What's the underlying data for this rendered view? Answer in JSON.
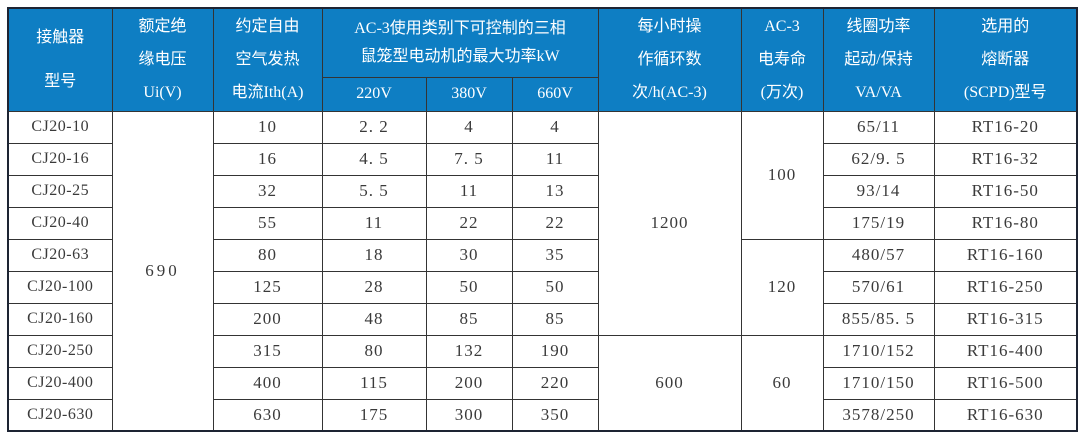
{
  "table": {
    "colors": {
      "header_bg": "#0e7ec3",
      "header_text": "#ffffff",
      "body_text": "#3a3a3a",
      "grid_line": "#343434",
      "outer_border": "#1d2433"
    },
    "header": {
      "model": [
        "接触器",
        "型号"
      ],
      "insulation_voltage": [
        "额定绝",
        "缘电压",
        "Ui(V)"
      ],
      "thermal_current": [
        "约定自由",
        "空气发热",
        "电流Ith(A)"
      ],
      "ac3_power": [
        "AC-3使用类别下可控制的三相",
        "鼠笼型电动机的最大功率kW"
      ],
      "voltages": [
        "220V",
        "380V",
        "660V"
      ],
      "cycles_per_hour": [
        "每小时操",
        "作循环数",
        "次/h(AC-3)"
      ],
      "electrical_life": [
        "AC-3",
        "电寿命",
        "(万次)"
      ],
      "coil_power": [
        "线圈功率",
        "起动/保持",
        "VA/VA"
      ],
      "fuse": [
        "选用的",
        "熔断器",
        "(SCPD)型号"
      ]
    },
    "rows": [
      {
        "model": "CJ20-10",
        "ith": "10",
        "kw_220v": "2. 2",
        "kw_380v": "4",
        "kw_660v": "4",
        "coil_va": "65/11",
        "fuse": "RT16-20"
      },
      {
        "model": "CJ20-16",
        "ith": "16",
        "kw_220v": "4. 5",
        "kw_380v": "7. 5",
        "kw_660v": "11",
        "coil_va": "62/9. 5",
        "fuse": "RT16-32"
      },
      {
        "model": "CJ20-25",
        "ith": "32",
        "kw_220v": "5. 5",
        "kw_380v": "11",
        "kw_660v": "13",
        "coil_va": "93/14",
        "fuse": "RT16-50"
      },
      {
        "model": "CJ20-40",
        "ith": "55",
        "kw_220v": "11",
        "kw_380v": "22",
        "kw_660v": "22",
        "coil_va": "175/19",
        "fuse": "RT16-80"
      },
      {
        "model": "CJ20-63",
        "ith": "80",
        "kw_220v": "18",
        "kw_380v": "30",
        "kw_660v": "35",
        "coil_va": "480/57",
        "fuse": "RT16-160"
      },
      {
        "model": "CJ20-100",
        "ith": "125",
        "kw_220v": "28",
        "kw_380v": "50",
        "kw_660v": "50",
        "coil_va": "570/61",
        "fuse": "RT16-250"
      },
      {
        "model": "CJ20-160",
        "ith": "200",
        "kw_220v": "48",
        "kw_380v": "85",
        "kw_660v": "85",
        "coil_va": "855/85. 5",
        "fuse": "RT16-315"
      },
      {
        "model": "CJ20-250",
        "ith": "315",
        "kw_220v": "80",
        "kw_380v": "132",
        "kw_660v": "190",
        "coil_va": "1710/152",
        "fuse": "RT16-400"
      },
      {
        "model": "CJ20-400",
        "ith": "400",
        "kw_220v": "115",
        "kw_380v": "200",
        "kw_660v": "220",
        "coil_va": "1710/150",
        "fuse": "RT16-500"
      },
      {
        "model": "CJ20-630",
        "ith": "630",
        "kw_220v": "175",
        "kw_380v": "300",
        "kw_660v": "350",
        "coil_va": "3578/250",
        "fuse": "RT16-630"
      }
    ],
    "merged": {
      "insulation_voltage": [
        {
          "value": "690",
          "start": 0,
          "span": 10
        }
      ],
      "cycles_per_hour": [
        {
          "value": "1200",
          "start": 0,
          "span": 7
        },
        {
          "value": "600",
          "start": 7,
          "span": 3
        }
      ],
      "electrical_life": [
        {
          "value": "100",
          "start": 0,
          "span": 4
        },
        {
          "value": "120",
          "start": 4,
          "span": 3
        },
        {
          "value": "60",
          "start": 7,
          "span": 3
        }
      ]
    }
  }
}
